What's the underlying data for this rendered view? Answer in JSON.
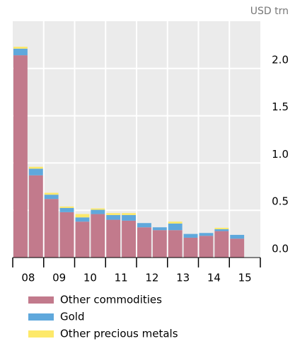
{
  "chart_data": {
    "type": "stacked-bar",
    "unit_label": "USD trn",
    "x_labels": [
      "08",
      "09",
      "10",
      "11",
      "12",
      "13",
      "14",
      "15"
    ],
    "series": [
      {
        "name": "Other commodities",
        "color": "#c27a8c",
        "values": [
          2.14,
          0.87,
          0.62,
          0.48,
          0.38,
          0.46,
          0.4,
          0.39,
          0.32,
          0.29,
          0.29,
          0.21,
          0.23,
          0.28,
          0.2
        ]
      },
      {
        "name": "Gold",
        "color": "#5fa8dc",
        "values": [
          0.07,
          0.07,
          0.045,
          0.045,
          0.045,
          0.045,
          0.05,
          0.06,
          0.045,
          0.03,
          0.07,
          0.04,
          0.03,
          0.02,
          0.04
        ]
      },
      {
        "name": "Other precious metals",
        "color": "#fde96a",
        "values": [
          0.02,
          0.02,
          0.02,
          0.015,
          0.035,
          0.015,
          0.02,
          0.02,
          0,
          0,
          0.02,
          0,
          0,
          0.015,
          0
        ]
      }
    ],
    "ylim": [
      0,
      2.5
    ],
    "yticks": [
      {
        "value": 0,
        "label": "0.0"
      },
      0.5,
      {
        "value": 1,
        "label": "1.0"
      },
      1.5,
      {
        "value": 2,
        "label": "2.0"
      }
    ],
    "grid": true
  }
}
